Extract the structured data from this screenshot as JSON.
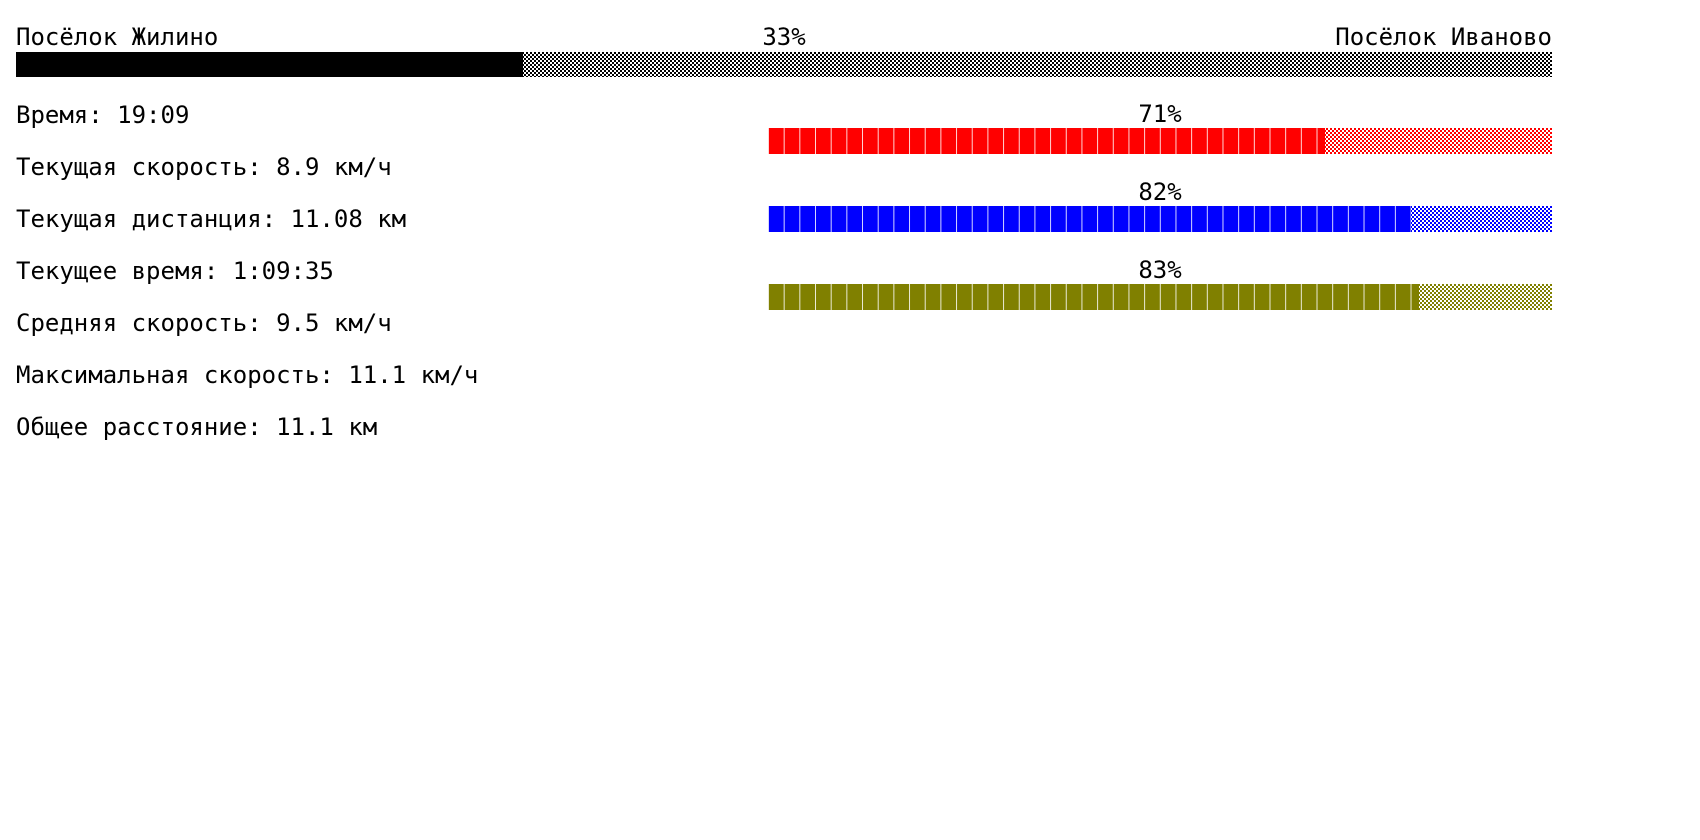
{
  "route": {
    "start": "Посёлок Жилино",
    "end": "Посёлок Иваново",
    "progress_label": "33%",
    "progress": 0.33
  },
  "stats": {
    "time": "Время: 19:09",
    "current_speed": "Текущая скорость: 8.9 км/ч",
    "current_distance": "Текущая дистанция: 11.08 км",
    "current_time": "Текущее время: 1:09:35",
    "average_speed": "Средняя скорость: 9.5 км/ч",
    "max_speed": "Максимальная скорость: 11.1 км/ч",
    "total_distance": "Общее расстояние: 11.1 км"
  },
  "meters": [
    {
      "label": "71%",
      "value": 0.71,
      "color": "#ff0000"
    },
    {
      "label": "82%",
      "value": 0.82,
      "color": "#0000ff"
    },
    {
      "label": "83%",
      "value": 0.83,
      "color": "#808000"
    }
  ]
}
